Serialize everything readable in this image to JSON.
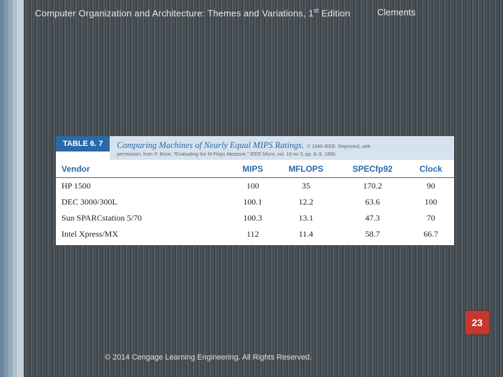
{
  "header": {
    "title_prefix": "Computer Organization and Architecture: Themes and Variations, 1",
    "title_sup": "st",
    "title_suffix": " Edition",
    "author": "Clements"
  },
  "table": {
    "badge": "TABLE 6. 7",
    "caption": "Comparing Machines of Nearly Equal MIPS Ratings.",
    "credit_line1": "© 1996 IEEE. Reprinted, with",
    "credit_line2": "permission, from P. Bose, \"Evaluating the M-Flops Measure,\" IEEE Micro, vol. 16 no 3, pp. 8–9, 1996.",
    "columns": [
      "Vendor",
      "MIPS",
      "MFLOPS",
      "SPECfp92",
      "Clock"
    ],
    "rows": [
      [
        "HP 1500",
        "100",
        "35",
        "170.2",
        "90"
      ],
      [
        "DEC 3000/300L",
        "100.1",
        "12.2",
        "63.6",
        "100"
      ],
      [
        "Sun SPARCstation 5/70",
        "100.3",
        "13.1",
        "47.3",
        "70"
      ],
      [
        "Intel Xpress/MX",
        "112",
        "11.4",
        "58.7",
        "66.7"
      ]
    ],
    "header_color": "#2a6aa8",
    "badge_bg": "#2a6aa8",
    "caption_bg": "#d6e3ee"
  },
  "page_number": "23",
  "page_number_bg": "#c8372e",
  "copyright": "© 2014 Cengage Learning Engineering. All Rights Reserved."
}
